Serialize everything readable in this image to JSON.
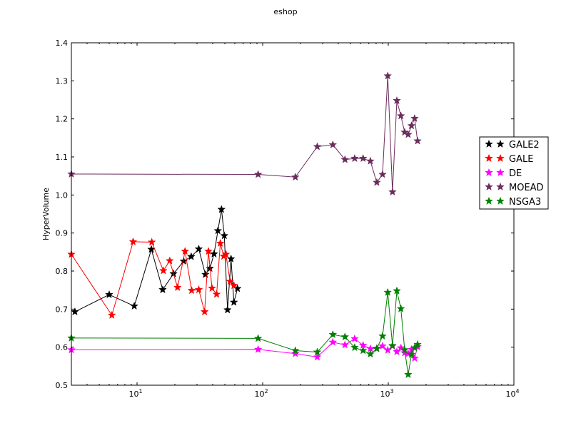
{
  "chart_data": {
    "type": "line",
    "title": "eshop",
    "xlabel": "",
    "ylabel": "HyperVolume",
    "xscale": "log",
    "xlim": [
      3,
      10000
    ],
    "ylim": [
      0.5,
      1.4
    ],
    "x_ticks": [
      {
        "value": 10,
        "base": "10",
        "exp": "1"
      },
      {
        "value": 100,
        "base": "10",
        "exp": "2"
      },
      {
        "value": 1000,
        "base": "10",
        "exp": "3"
      },
      {
        "value": 10000,
        "base": "10",
        "exp": "4"
      }
    ],
    "y_ticks": [
      "0.5",
      "0.6",
      "0.7",
      "0.8",
      "0.9",
      "1.0",
      "1.1",
      "1.2",
      "1.3",
      "1.4"
    ],
    "grid": false,
    "legend_position": "right",
    "series": [
      {
        "name": "GALE2",
        "color": "#000000",
        "x": [
          3.2,
          6,
          9.5,
          13,
          16,
          19.5,
          23.5,
          27,
          31,
          35,
          38,
          41,
          44,
          47,
          49.5,
          52.5,
          56,
          59,
          63
        ],
        "y": [
          0.693,
          0.738,
          0.708,
          0.857,
          0.751,
          0.793,
          0.826,
          0.838,
          0.858,
          0.791,
          0.807,
          0.845,
          0.906,
          0.962,
          0.893,
          0.698,
          0.832,
          0.718,
          0.754
        ]
      },
      {
        "name": "GALE",
        "color": "#ff0000",
        "x": [
          3,
          6.3,
          9.3,
          13.1,
          16.2,
          18.2,
          21,
          24.1,
          27.2,
          31,
          34.5,
          37,
          39.5,
          43,
          46,
          49,
          51,
          55,
          59
        ],
        "y": [
          0.844,
          0.684,
          0.877,
          0.876,
          0.801,
          0.827,
          0.757,
          0.852,
          0.749,
          0.751,
          0.693,
          0.852,
          0.755,
          0.739,
          0.873,
          0.839,
          0.844,
          0.773,
          0.762
        ]
      },
      {
        "name": "DE",
        "color": "#ff00ff",
        "x": [
          3,
          92,
          182,
          272,
          362,
          452,
          540,
          630,
          720,
          810,
          900,
          990,
          1080,
          1170,
          1260,
          1350,
          1440,
          1530,
          1620,
          1710
        ],
        "y": [
          0.593,
          0.594,
          0.583,
          0.574,
          0.613,
          0.606,
          0.622,
          0.605,
          0.596,
          0.597,
          0.603,
          0.592,
          0.603,
          0.588,
          0.598,
          0.585,
          0.583,
          0.594,
          0.571,
          0.601
        ]
      },
      {
        "name": "MOEAD",
        "color": "#6b2d5c",
        "x": [
          3,
          92,
          182,
          272,
          362,
          452,
          540,
          630,
          720,
          810,
          900,
          990,
          1080,
          1170,
          1260,
          1350,
          1440,
          1530,
          1620,
          1710
        ],
        "y": [
          1.055,
          1.054,
          1.047,
          1.127,
          1.132,
          1.093,
          1.096,
          1.096,
          1.089,
          1.033,
          1.054,
          1.313,
          1.008,
          1.248,
          1.208,
          1.165,
          1.159,
          1.182,
          1.201,
          1.142
        ]
      },
      {
        "name": "NSGA3",
        "color": "#007f00",
        "x": [
          3,
          92,
          182,
          272,
          362,
          452,
          540,
          630,
          720,
          810,
          900,
          990,
          1080,
          1170,
          1260,
          1350,
          1440,
          1530,
          1620,
          1710
        ],
        "y": [
          0.624,
          0.623,
          0.591,
          0.587,
          0.633,
          0.627,
          0.599,
          0.591,
          0.582,
          0.596,
          0.629,
          0.744,
          0.604,
          0.748,
          0.701,
          0.593,
          0.528,
          0.581,
          0.598,
          0.607
        ]
      }
    ]
  }
}
